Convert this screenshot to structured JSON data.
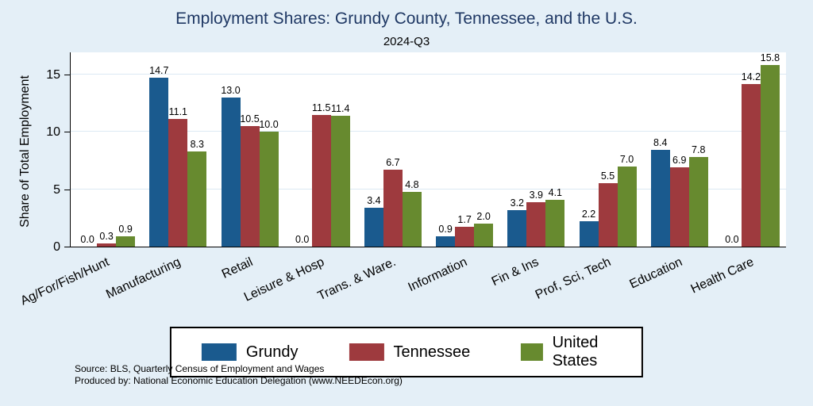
{
  "chart_data": {
    "type": "bar",
    "title": "Employment Shares: Grundy County, Tennessee, and the U.S.",
    "subtitle": "2024-Q3",
    "ylabel": "Share of Total Employment",
    "xlabel": "",
    "ylim": [
      0,
      17
    ],
    "yticks": [
      0,
      5,
      10,
      15
    ],
    "grid": "light-horizontal",
    "legend_position": "bottom",
    "categories": [
      "Ag/For/Fish/Hunt",
      "Manufacturing",
      "Retail",
      "Leisure & Hosp",
      "Trans. & Ware.",
      "Information",
      "Fin & Ins",
      "Prof, Sci, Tech",
      "Education",
      "Health Care"
    ],
    "series": [
      {
        "name": "Grundy",
        "color": "#1a5a8e",
        "values": [
          0.0,
          14.7,
          13.0,
          0.0,
          3.4,
          0.9,
          3.2,
          2.2,
          8.4,
          0.0
        ]
      },
      {
        "name": "Tennessee",
        "color": "#9e3a3e",
        "values": [
          0.3,
          11.1,
          10.5,
          11.5,
          6.7,
          1.7,
          3.9,
          5.5,
          6.9,
          14.2
        ]
      },
      {
        "name": "United States",
        "color": "#678a2f",
        "values": [
          0.9,
          8.3,
          10.0,
          11.4,
          4.8,
          2.0,
          4.1,
          7.0,
          7.8,
          15.8
        ]
      }
    ]
  },
  "notes": {
    "line1": "Source: BLS, Quarterly Census of Employment and Wages",
    "line2": "Produced by: National Economic Education Delegation (www.NEEDEcon.org)"
  },
  "colors": {
    "background": "#e4eff7",
    "plot_background": "#ffffff",
    "title_text": "#1f3864"
  }
}
